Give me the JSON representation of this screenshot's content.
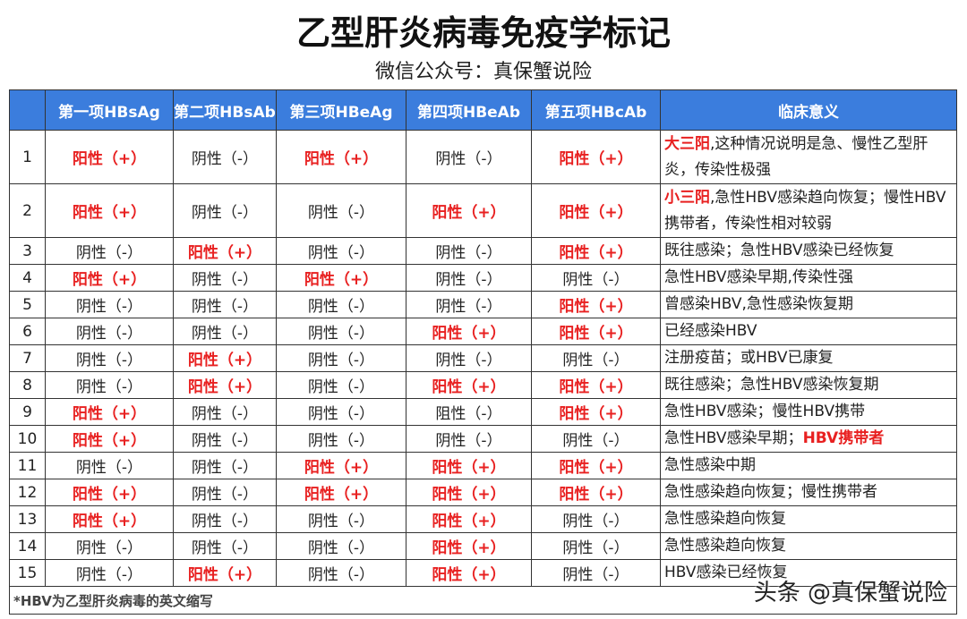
{
  "title": "乙型肝炎病毒免疫学标记",
  "subtitle": "微信公众号：真保蟹说险",
  "headers": [
    "",
    "第一项HBsAg",
    "第二项HBsAb",
    "第三项HBeAg",
    "第四项HBeAb",
    "第五项HBcAb",
    "临床意义"
  ],
  "colors": {
    "header": "#3b7ddd",
    "positive": "#e82020"
  },
  "rows": [
    {
      "no": "1",
      "cells": [
        [
          "阳性（+）",
          1
        ],
        [
          "阴性（-）",
          0
        ],
        [
          "阳性（+）",
          1
        ],
        [
          "阴性（-）",
          0
        ],
        [
          "阳性（+）",
          1
        ]
      ],
      "pre": "大三阳",
      "text": ",这种情况说明是急、慢性乙型肝炎，传染性极强",
      "post": ""
    },
    {
      "no": "2",
      "cells": [
        [
          "阳性（+）",
          1
        ],
        [
          "阴性（-）",
          0
        ],
        [
          "阴性（-）",
          0
        ],
        [
          "阳性（+）",
          1
        ],
        [
          "阳性（+）",
          1
        ]
      ],
      "pre": "小三阳",
      "text": ",急性HBV感染趋向恢复；慢性HBV携带者，传染性相对较弱",
      "post": ""
    },
    {
      "no": "3",
      "cells": [
        [
          "阴性（-）",
          0
        ],
        [
          "阳性（+）",
          1
        ],
        [
          "阴性（-）",
          0
        ],
        [
          "阴性（-）",
          0
        ],
        [
          "阳性（+）",
          1
        ]
      ],
      "pre": "",
      "text": "既往感染；急性HBV感染已经恢复",
      "post": ""
    },
    {
      "no": "4",
      "cells": [
        [
          "阳性（+）",
          1
        ],
        [
          "阴性（-）",
          0
        ],
        [
          "阳性（+）",
          1
        ],
        [
          "阴性（-）",
          0
        ],
        [
          "阴性（-）",
          0
        ]
      ],
      "pre": "",
      "text": "急性HBV感染早期,传染性强",
      "post": ""
    },
    {
      "no": "5",
      "cells": [
        [
          "阴性（-）",
          0
        ],
        [
          "阴性（-）",
          0
        ],
        [
          "阴性（-）",
          0
        ],
        [
          "阴性（-）",
          0
        ],
        [
          "阳性（+）",
          1
        ]
      ],
      "pre": "",
      "text": "曾感染HBV,急性感染恢复期",
      "post": ""
    },
    {
      "no": "6",
      "cells": [
        [
          "阴性（-）",
          0
        ],
        [
          "阴性（-）",
          0
        ],
        [
          "阴性（-）",
          0
        ],
        [
          "阳性（+）",
          1
        ],
        [
          "阳性（+）",
          1
        ]
      ],
      "pre": "",
      "text": "已经感染HBV",
      "post": ""
    },
    {
      "no": "7",
      "cells": [
        [
          "阴性（-）",
          0
        ],
        [
          "阳性（+）",
          1
        ],
        [
          "阴性（-）",
          0
        ],
        [
          "阴性（-）",
          0
        ],
        [
          "阴性（-）",
          0
        ]
      ],
      "pre": "",
      "text": "注册疫苗；或HBV已康复",
      "post": ""
    },
    {
      "no": "8",
      "cells": [
        [
          "阴性（-）",
          0
        ],
        [
          "阳性（+）",
          1
        ],
        [
          "阴性（-）",
          0
        ],
        [
          "阳性（+）",
          1
        ],
        [
          "阳性（+）",
          1
        ]
      ],
      "pre": "",
      "text": "既往感染；急性HBV感染恢复期",
      "post": ""
    },
    {
      "no": "9",
      "cells": [
        [
          "阳性（+）",
          1
        ],
        [
          "阴性（-）",
          0
        ],
        [
          "阴性（-）",
          0
        ],
        [
          "阻性（-）",
          0
        ],
        [
          "阳性（+）",
          1
        ]
      ],
      "pre": "",
      "text": "急性HBV感染；慢性HBV携带",
      "post": ""
    },
    {
      "no": "10",
      "cells": [
        [
          "阳性（+）",
          1
        ],
        [
          "阴性（-）",
          0
        ],
        [
          "阴性（-）",
          0
        ],
        [
          "阴性（-）",
          0
        ],
        [
          "阴性（-）",
          0
        ]
      ],
      "pre": "",
      "text": "急性HBV感染早期；",
      "post": "HBV携带者"
    },
    {
      "no": "11",
      "cells": [
        [
          "阴性（-）",
          0
        ],
        [
          "阴性（-）",
          0
        ],
        [
          "阳性（+）",
          1
        ],
        [
          "阳性（+）",
          1
        ],
        [
          "阳性（+）",
          1
        ]
      ],
      "pre": "",
      "text": "急性感染中期",
      "post": ""
    },
    {
      "no": "12",
      "cells": [
        [
          "阳性（+）",
          1
        ],
        [
          "阴性（-）",
          0
        ],
        [
          "阳性（+）",
          1
        ],
        [
          "阳性（+）",
          1
        ],
        [
          "阳性（+）",
          1
        ]
      ],
      "pre": "",
      "text": "急性感染趋向恢复；慢性携带者",
      "post": ""
    },
    {
      "no": "13",
      "cells": [
        [
          "阳性（+）",
          1
        ],
        [
          "阴性（-）",
          0
        ],
        [
          "阴性（-）",
          0
        ],
        [
          "阳性（+）",
          1
        ],
        [
          "阴性（-）",
          0
        ]
      ],
      "pre": "",
      "text": "急性感染趋向恢复",
      "post": ""
    },
    {
      "no": "14",
      "cells": [
        [
          "阴性（-）",
          0
        ],
        [
          "阴性（-）",
          0
        ],
        [
          "阴性（-）",
          0
        ],
        [
          "阳性（+）",
          1
        ],
        [
          "阴性（-）",
          0
        ]
      ],
      "pre": "",
      "text": "急性感染趋向恢复",
      "post": ""
    },
    {
      "no": "15",
      "cells": [
        [
          "阴性（-）",
          0
        ],
        [
          "阳性（+）",
          1
        ],
        [
          "阴性（-）",
          0
        ],
        [
          "阳性（+）",
          1
        ],
        [
          "阴性（-）",
          0
        ]
      ],
      "pre": "",
      "text": "HBV感染已经恢复",
      "post": ""
    }
  ],
  "footnote": "*HBV为乙型肝炎病毒的英文缩写",
  "watermark": "头条 @真保蟹说险"
}
